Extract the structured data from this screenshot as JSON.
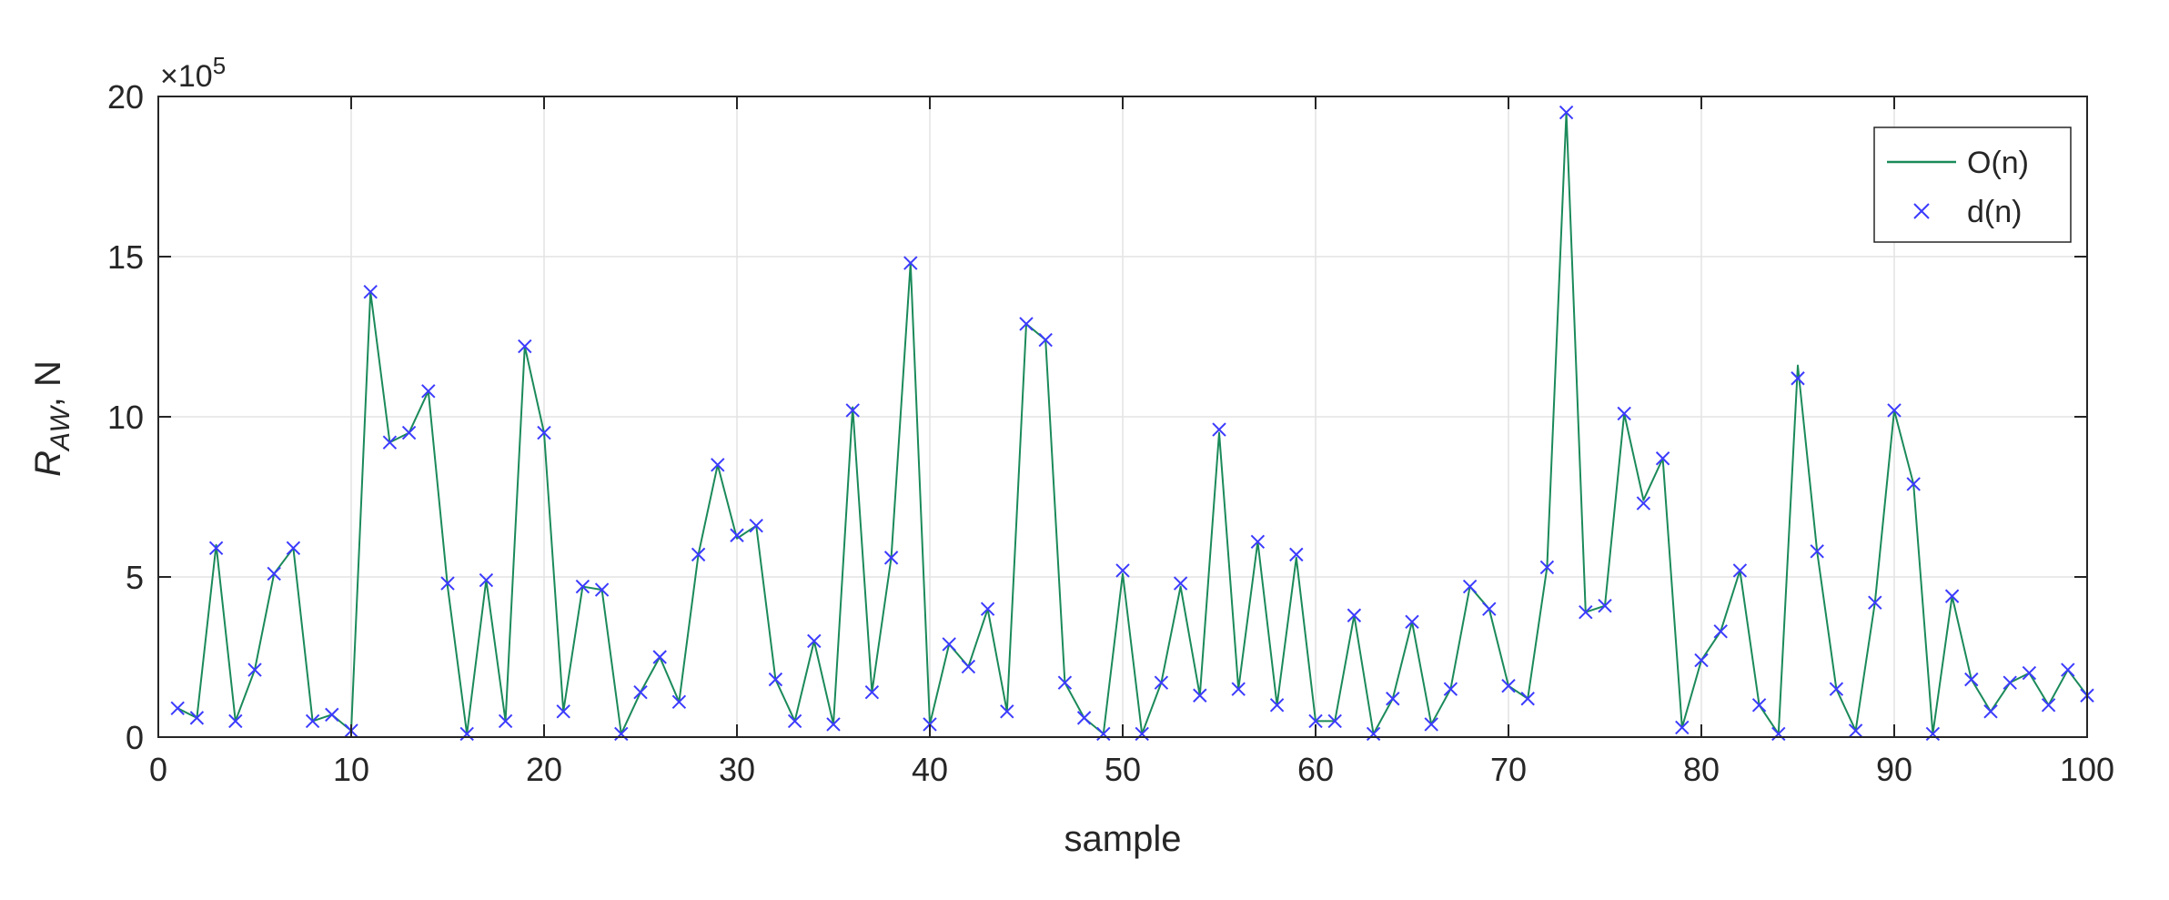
{
  "chart_data": {
    "type": "line",
    "xlabel": "sample",
    "ylabel_main": "R",
    "ylabel_sub": "AW",
    "ylabel_unit": ", N",
    "y_multiplier_prefix": "×10",
    "y_multiplier_exp": "5",
    "xlim": [
      0,
      100
    ],
    "ylim": [
      0,
      20
    ],
    "x_ticks": [
      0,
      10,
      20,
      30,
      40,
      50,
      60,
      70,
      80,
      90,
      100
    ],
    "y_ticks": [
      0,
      5,
      10,
      15,
      20
    ],
    "grid": true,
    "legend_position": "top-right",
    "colors": {
      "line": "#1b8a5a",
      "marker": "#3b3bff",
      "axis": "#262626",
      "grid": "#e3e3e3"
    },
    "series": [
      {
        "name": "O(n)",
        "style": "line",
        "x": [
          1,
          2,
          3,
          4,
          5,
          6,
          7,
          8,
          9,
          10,
          11,
          12,
          13,
          14,
          15,
          16,
          17,
          18,
          19,
          20,
          21,
          22,
          23,
          24,
          25,
          26,
          27,
          28,
          29,
          30,
          31,
          32,
          33,
          34,
          35,
          36,
          37,
          38,
          39,
          40,
          41,
          42,
          43,
          44,
          45,
          46,
          47,
          48,
          49,
          50,
          51,
          52,
          53,
          54,
          55,
          56,
          57,
          58,
          59,
          60,
          61,
          62,
          63,
          64,
          65,
          66,
          67,
          68,
          69,
          70,
          71,
          72,
          73,
          74,
          75,
          76,
          77,
          78,
          79,
          80,
          81,
          82,
          83,
          84,
          85,
          86,
          87,
          88,
          89,
          90,
          91,
          92,
          93,
          94,
          95,
          96,
          97,
          98,
          99,
          100
        ],
        "values": [
          0.9,
          0.6,
          6.0,
          0.5,
          2.1,
          5.1,
          5.9,
          0.5,
          0.7,
          0.2,
          13.9,
          9.2,
          9.5,
          10.8,
          4.7,
          0.1,
          4.9,
          0.5,
          12.2,
          9.5,
          0.8,
          4.7,
          4.6,
          0.1,
          1.4,
          2.5,
          1.1,
          5.7,
          8.5,
          6.2,
          6.6,
          1.8,
          0.5,
          3.0,
          0.4,
          10.3,
          1.4,
          5.6,
          14.8,
          0.4,
          2.9,
          2.2,
          4.0,
          0.8,
          12.9,
          12.4,
          1.7,
          0.6,
          0.1,
          5.1,
          0.1,
          1.7,
          4.7,
          1.3,
          9.5,
          1.5,
          6.1,
          1.0,
          5.6,
          0.5,
          0.5,
          3.8,
          0.1,
          1.2,
          3.6,
          0.4,
          1.5,
          4.7,
          4.0,
          1.6,
          1.2,
          5.3,
          19.5,
          3.9,
          4.1,
          10.1,
          7.4,
          8.7,
          0.3,
          2.4,
          3.3,
          5.2,
          1.0,
          0.1,
          11.6,
          5.8,
          1.5,
          0.2,
          4.2,
          10.2,
          7.9,
          0.1,
          4.4,
          1.8,
          0.8,
          1.7,
          2.0,
          1.0,
          2.1,
          1.3
        ]
      },
      {
        "name": "d(n)",
        "style": "marker",
        "x": [
          1,
          2,
          3,
          4,
          5,
          6,
          7,
          8,
          9,
          10,
          11,
          12,
          13,
          14,
          15,
          16,
          17,
          18,
          19,
          20,
          21,
          22,
          23,
          24,
          25,
          26,
          27,
          28,
          29,
          30,
          31,
          32,
          33,
          34,
          35,
          36,
          37,
          38,
          39,
          40,
          41,
          42,
          43,
          44,
          45,
          46,
          47,
          48,
          49,
          50,
          51,
          52,
          53,
          54,
          55,
          56,
          57,
          58,
          59,
          60,
          61,
          62,
          63,
          64,
          65,
          66,
          67,
          68,
          69,
          70,
          71,
          72,
          73,
          74,
          75,
          76,
          77,
          78,
          79,
          80,
          81,
          82,
          83,
          84,
          85,
          86,
          87,
          88,
          89,
          90,
          91,
          92,
          93,
          94,
          95,
          96,
          97,
          98,
          99,
          100
        ],
        "values": [
          0.9,
          0.6,
          5.9,
          0.5,
          2.1,
          5.1,
          5.9,
          0.5,
          0.7,
          0.2,
          13.9,
          9.2,
          9.5,
          10.8,
          4.8,
          0.1,
          4.9,
          0.5,
          12.2,
          9.5,
          0.8,
          4.7,
          4.6,
          0.1,
          1.4,
          2.5,
          1.1,
          5.7,
          8.5,
          6.3,
          6.6,
          1.8,
          0.5,
          3.0,
          0.4,
          10.2,
          1.4,
          5.6,
          14.8,
          0.4,
          2.9,
          2.2,
          4.0,
          0.8,
          12.9,
          12.4,
          1.7,
          0.6,
          0.1,
          5.2,
          0.1,
          1.7,
          4.8,
          1.3,
          9.6,
          1.5,
          6.1,
          1.0,
          5.7,
          0.5,
          0.5,
          3.8,
          0.1,
          1.2,
          3.6,
          0.4,
          1.5,
          4.7,
          4.0,
          1.6,
          1.2,
          5.3,
          19.5,
          3.9,
          4.1,
          10.1,
          7.3,
          8.7,
          0.3,
          2.4,
          3.3,
          5.2,
          1.0,
          0.1,
          11.2,
          5.8,
          1.5,
          0.2,
          4.2,
          10.2,
          7.9,
          0.1,
          4.4,
          1.8,
          0.8,
          1.7,
          2.0,
          1.0,
          2.1,
          1.3
        ]
      }
    ]
  }
}
